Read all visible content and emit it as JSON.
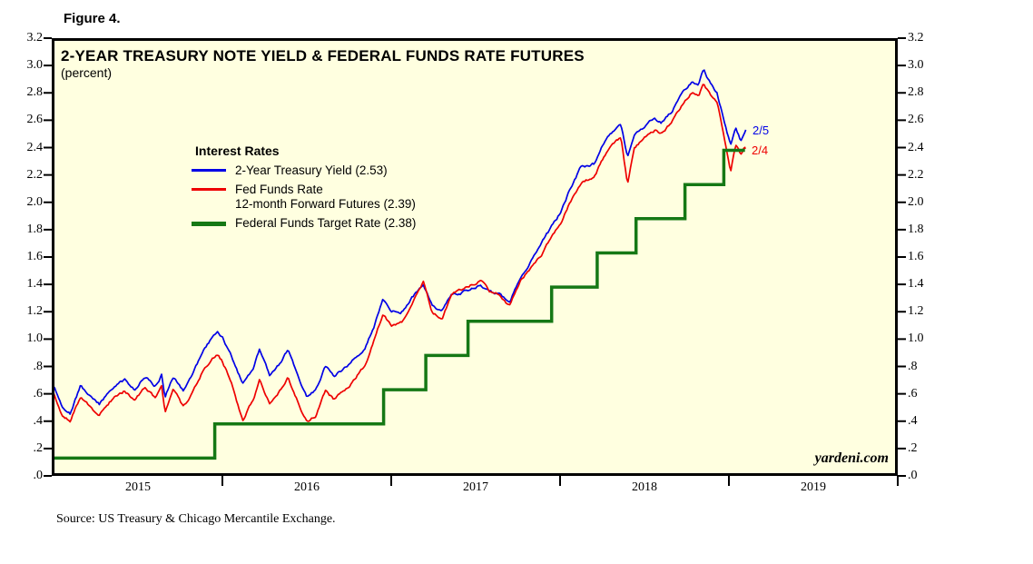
{
  "figure_label": "Figure 4.",
  "chart": {
    "title": "2-YEAR TREASURY NOTE YIELD & FEDERAL FUNDS RATE FUTURES",
    "subtitle": "(percent)",
    "watermark": "yardeni.com",
    "source": "Source: US Treasury & Chicago Mercantile Exchange.",
    "end_labels": {
      "blue": "2/5",
      "red": "2/4"
    },
    "legend": {
      "title": "Interest Rates",
      "items": [
        {
          "key": "treasury-yield",
          "lines": [
            "2-Year Treasury Yield (2.53)"
          ],
          "color": "#0000e6",
          "thick": false
        },
        {
          "key": "fed-funds-futures",
          "lines": [
            "Fed Funds Rate",
            "12-month Forward Futures (2.39)"
          ],
          "color": "#ee0000",
          "thick": false
        },
        {
          "key": "fed-funds-target",
          "lines": [
            "Federal Funds Target Rate (2.38)"
          ],
          "color": "#157815",
          "thick": true
        }
      ]
    }
  },
  "chart_data": {
    "type": "line",
    "title": "2-YEAR TREASURY NOTE YIELD & FEDERAL FUNDS RATE FUTURES",
    "subtitle": "(percent)",
    "x_unit": "decimal_year",
    "x_range": [
      2015.0,
      2020.0
    ],
    "x_year_boundaries": [
      2016,
      2017,
      2018,
      2019,
      2020
    ],
    "x_tick_labels": [
      "2015",
      "2016",
      "2017",
      "2018",
      "2019"
    ],
    "ylim": [
      0.0,
      3.2
    ],
    "y_tick_step": 0.2,
    "y_tick_labels": [
      "3.2",
      "3.0",
      "2.8",
      "2.6",
      "2.4",
      "2.2",
      "2.0",
      "1.8",
      "1.6",
      "1.4",
      "1.2",
      "1.0",
      ".8",
      ".6",
      ".4",
      ".2",
      ".0"
    ],
    "grid": false,
    "legend_position": "upper-left-inside",
    "annotations": [
      {
        "text": "2/5",
        "t": 2019.14,
        "value": 2.53,
        "series": "treasury-yield"
      },
      {
        "text": "2/4",
        "t": 2019.13,
        "value": 2.39,
        "series": "fed-funds-futures"
      }
    ],
    "series": [
      {
        "key": "treasury-yield",
        "name": "2-Year Treasury Yield",
        "current": 2.53,
        "color": "#0000e6",
        "step": false,
        "points": [
          [
            2015.0,
            0.66
          ],
          [
            2015.05,
            0.52
          ],
          [
            2015.1,
            0.46
          ],
          [
            2015.16,
            0.66
          ],
          [
            2015.22,
            0.57
          ],
          [
            2015.27,
            0.52
          ],
          [
            2015.34,
            0.63
          ],
          [
            2015.42,
            0.7
          ],
          [
            2015.48,
            0.63
          ],
          [
            2015.54,
            0.73
          ],
          [
            2015.6,
            0.66
          ],
          [
            2015.64,
            0.74
          ],
          [
            2015.66,
            0.58
          ],
          [
            2015.71,
            0.73
          ],
          [
            2015.77,
            0.62
          ],
          [
            2015.83,
            0.76
          ],
          [
            2015.89,
            0.92
          ],
          [
            2015.97,
            1.06
          ],
          [
            2016.0,
            1.02
          ],
          [
            2016.05,
            0.88
          ],
          [
            2016.12,
            0.67
          ],
          [
            2016.18,
            0.77
          ],
          [
            2016.22,
            0.92
          ],
          [
            2016.28,
            0.73
          ],
          [
            2016.34,
            0.82
          ],
          [
            2016.39,
            0.92
          ],
          [
            2016.45,
            0.73
          ],
          [
            2016.5,
            0.58
          ],
          [
            2016.55,
            0.63
          ],
          [
            2016.61,
            0.8
          ],
          [
            2016.66,
            0.73
          ],
          [
            2016.72,
            0.78
          ],
          [
            2016.78,
            0.85
          ],
          [
            2016.84,
            0.92
          ],
          [
            2016.9,
            1.1
          ],
          [
            2016.95,
            1.28
          ],
          [
            2017.0,
            1.2
          ],
          [
            2017.06,
            1.2
          ],
          [
            2017.12,
            1.3
          ],
          [
            2017.19,
            1.4
          ],
          [
            2017.24,
            1.25
          ],
          [
            2017.3,
            1.2
          ],
          [
            2017.36,
            1.33
          ],
          [
            2017.45,
            1.35
          ],
          [
            2017.53,
            1.4
          ],
          [
            2017.58,
            1.34
          ],
          [
            2017.64,
            1.33
          ],
          [
            2017.7,
            1.27
          ],
          [
            2017.76,
            1.45
          ],
          [
            2017.83,
            1.58
          ],
          [
            2017.89,
            1.7
          ],
          [
            2017.95,
            1.82
          ],
          [
            2018.0,
            1.92
          ],
          [
            2018.06,
            2.1
          ],
          [
            2018.12,
            2.25
          ],
          [
            2018.2,
            2.28
          ],
          [
            2018.28,
            2.48
          ],
          [
            2018.36,
            2.58
          ],
          [
            2018.4,
            2.32
          ],
          [
            2018.44,
            2.5
          ],
          [
            2018.5,
            2.55
          ],
          [
            2018.56,
            2.62
          ],
          [
            2018.6,
            2.58
          ],
          [
            2018.66,
            2.66
          ],
          [
            2018.72,
            2.8
          ],
          [
            2018.78,
            2.88
          ],
          [
            2018.82,
            2.85
          ],
          [
            2018.85,
            2.97
          ],
          [
            2018.89,
            2.87
          ],
          [
            2018.93,
            2.8
          ],
          [
            2018.97,
            2.6
          ],
          [
            2019.01,
            2.42
          ],
          [
            2019.04,
            2.55
          ],
          [
            2019.07,
            2.45
          ],
          [
            2019.09,
            2.5
          ],
          [
            2019.1,
            2.53
          ]
        ]
      },
      {
        "key": "fed-funds-futures",
        "name": "Fed Funds Rate 12-month Forward Futures",
        "current": 2.39,
        "color": "#ee0000",
        "step": false,
        "points": [
          [
            2015.0,
            0.6
          ],
          [
            2015.05,
            0.45
          ],
          [
            2015.1,
            0.4
          ],
          [
            2015.16,
            0.58
          ],
          [
            2015.22,
            0.5
          ],
          [
            2015.27,
            0.44
          ],
          [
            2015.34,
            0.55
          ],
          [
            2015.42,
            0.62
          ],
          [
            2015.48,
            0.55
          ],
          [
            2015.54,
            0.64
          ],
          [
            2015.6,
            0.57
          ],
          [
            2015.64,
            0.65
          ],
          [
            2015.66,
            0.47
          ],
          [
            2015.71,
            0.63
          ],
          [
            2015.77,
            0.5
          ],
          [
            2015.83,
            0.62
          ],
          [
            2015.89,
            0.78
          ],
          [
            2015.97,
            0.89
          ],
          [
            2016.0,
            0.84
          ],
          [
            2016.05,
            0.7
          ],
          [
            2016.12,
            0.4
          ],
          [
            2016.18,
            0.55
          ],
          [
            2016.22,
            0.7
          ],
          [
            2016.28,
            0.53
          ],
          [
            2016.34,
            0.63
          ],
          [
            2016.39,
            0.72
          ],
          [
            2016.45,
            0.53
          ],
          [
            2016.5,
            0.4
          ],
          [
            2016.55,
            0.44
          ],
          [
            2016.61,
            0.62
          ],
          [
            2016.66,
            0.56
          ],
          [
            2016.72,
            0.62
          ],
          [
            2016.78,
            0.7
          ],
          [
            2016.84,
            0.8
          ],
          [
            2016.9,
            1.0
          ],
          [
            2016.95,
            1.18
          ],
          [
            2017.0,
            1.1
          ],
          [
            2017.06,
            1.12
          ],
          [
            2017.12,
            1.25
          ],
          [
            2017.19,
            1.42
          ],
          [
            2017.24,
            1.2
          ],
          [
            2017.3,
            1.15
          ],
          [
            2017.36,
            1.33
          ],
          [
            2017.45,
            1.38
          ],
          [
            2017.53,
            1.43
          ],
          [
            2017.58,
            1.35
          ],
          [
            2017.64,
            1.33
          ],
          [
            2017.7,
            1.24
          ],
          [
            2017.76,
            1.42
          ],
          [
            2017.83,
            1.52
          ],
          [
            2017.89,
            1.62
          ],
          [
            2017.95,
            1.74
          ],
          [
            2018.0,
            1.84
          ],
          [
            2018.06,
            2.0
          ],
          [
            2018.12,
            2.14
          ],
          [
            2018.2,
            2.18
          ],
          [
            2018.28,
            2.38
          ],
          [
            2018.36,
            2.48
          ],
          [
            2018.4,
            2.13
          ],
          [
            2018.44,
            2.4
          ],
          [
            2018.5,
            2.47
          ],
          [
            2018.56,
            2.52
          ],
          [
            2018.6,
            2.5
          ],
          [
            2018.66,
            2.58
          ],
          [
            2018.72,
            2.7
          ],
          [
            2018.78,
            2.8
          ],
          [
            2018.82,
            2.78
          ],
          [
            2018.85,
            2.88
          ],
          [
            2018.89,
            2.78
          ],
          [
            2018.93,
            2.72
          ],
          [
            2018.97,
            2.5
          ],
          [
            2019.01,
            2.22
          ],
          [
            2019.04,
            2.42
          ],
          [
            2019.07,
            2.35
          ],
          [
            2019.09,
            2.4
          ],
          [
            2019.097,
            2.39
          ]
        ]
      },
      {
        "key": "fed-funds-target",
        "name": "Federal Funds Target Rate",
        "current": 2.38,
        "color": "#157815",
        "step": true,
        "points": [
          [
            2015.0,
            0.13
          ],
          [
            2015.955,
            0.13
          ],
          [
            2015.955,
            0.38
          ],
          [
            2016.955,
            0.38
          ],
          [
            2016.955,
            0.63
          ],
          [
            2017.205,
            0.63
          ],
          [
            2017.205,
            0.88
          ],
          [
            2017.455,
            0.88
          ],
          [
            2017.455,
            1.13
          ],
          [
            2017.95,
            1.13
          ],
          [
            2017.95,
            1.38
          ],
          [
            2018.22,
            1.38
          ],
          [
            2018.22,
            1.63
          ],
          [
            2018.45,
            1.63
          ],
          [
            2018.45,
            1.88
          ],
          [
            2018.74,
            1.88
          ],
          [
            2018.74,
            2.13
          ],
          [
            2018.97,
            2.13
          ],
          [
            2018.97,
            2.38
          ],
          [
            2019.095,
            2.38
          ]
        ]
      }
    ]
  }
}
